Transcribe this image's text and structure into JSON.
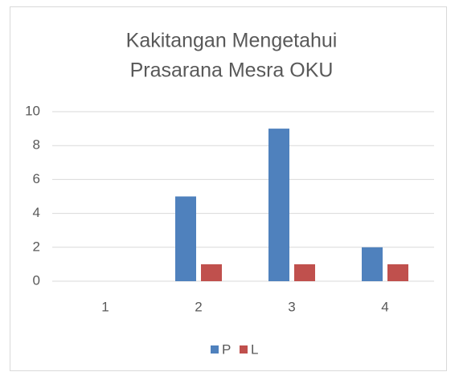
{
  "chart_data": {
    "type": "bar",
    "title": [
      "Kakitangan Mengetahui",
      "Prasarana Mesra OKU"
    ],
    "categories": [
      "1",
      "2",
      "3",
      "4"
    ],
    "series": [
      {
        "name": "P",
        "color": "#4f81bd",
        "values": [
          0,
          5,
          9,
          2
        ]
      },
      {
        "name": "L",
        "color": "#c0504d",
        "values": [
          0,
          1,
          1,
          1
        ]
      }
    ],
    "ylim": [
      0,
      10
    ],
    "yticks": [
      0,
      2,
      4,
      6,
      8,
      10
    ],
    "grid": true,
    "legend": "bottom"
  }
}
